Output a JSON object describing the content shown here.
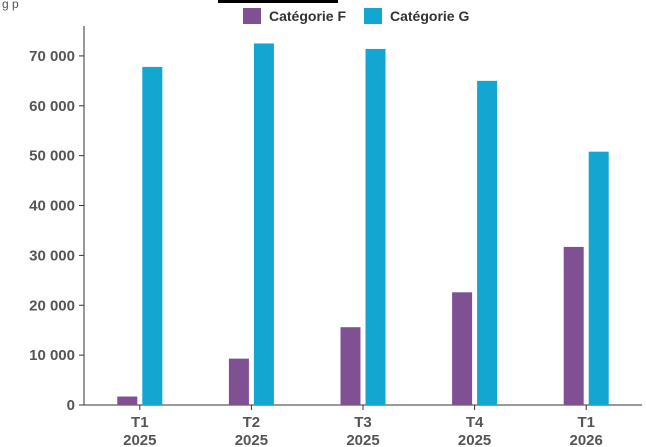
{
  "header_fragment": "g        p",
  "chart_data": {
    "type": "bar",
    "categories": [
      [
        "T1",
        "2025"
      ],
      [
        "T2",
        "2025"
      ],
      [
        "T3",
        "2025"
      ],
      [
        "T4",
        "2025"
      ],
      [
        "T1",
        "2026"
      ]
    ],
    "series": [
      {
        "name": "Catégorie F",
        "color": "#7f5193",
        "values": [
          1700,
          9300,
          15600,
          22600,
          31700
        ]
      },
      {
        "name": "Catégorie G",
        "color": "#13a6d0",
        "values": [
          67800,
          72500,
          71400,
          65000,
          50800
        ]
      }
    ],
    "ylim": [
      0,
      76000
    ],
    "yticks": [
      0,
      10000,
      20000,
      30000,
      40000,
      50000,
      60000,
      70000
    ],
    "ytick_labels": [
      "0",
      "10 000",
      "20 000",
      "30 000",
      "40 000",
      "50 000",
      "60 000",
      "70 000"
    ],
    "legend_position": "top-center",
    "grid": false
  }
}
